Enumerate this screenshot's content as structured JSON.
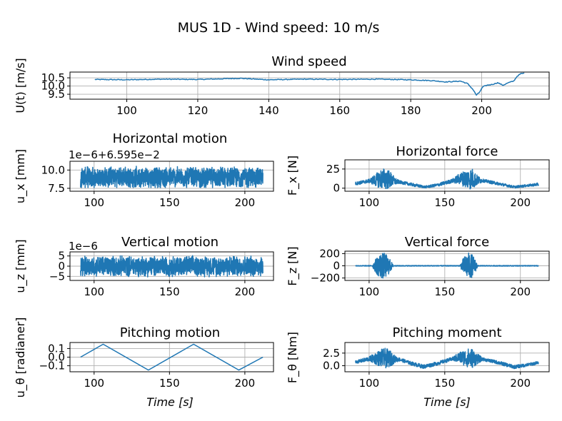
{
  "figure": {
    "suptitle": "MUS 1D - Wind speed: 10 m/s"
  },
  "colors": {
    "series": "#1f77b4",
    "grid": "#b0b0b0"
  },
  "chart_data": [
    {
      "id": "wind",
      "type": "line",
      "title": "Wind speed",
      "ylabel": "U(t) [m/s]",
      "xlabel": "",
      "xlim": [
        84,
        219
      ],
      "ylim": [
        9.2,
        10.85
      ],
      "xticks": [
        100,
        120,
        140,
        160,
        180,
        200
      ],
      "yticks": [
        9.5,
        10.0,
        10.5
      ],
      "ytick_labels": [
        "9.5",
        "10.0",
        "10.5"
      ],
      "grid": true,
      "pattern": "wind",
      "x": [
        91,
        100,
        110,
        120,
        132,
        140,
        150,
        160,
        170,
        180,
        186,
        190,
        194,
        196,
        197.5,
        198.5,
        199.3,
        200.3,
        201.5,
        203,
        204.5,
        206,
        207.5,
        209,
        210,
        211,
        212
      ],
      "y": [
        10.4,
        10.38,
        10.42,
        10.4,
        10.47,
        10.38,
        10.42,
        10.4,
        10.42,
        10.38,
        10.33,
        10.25,
        10.3,
        10.15,
        9.8,
        9.45,
        9.6,
        9.95,
        10.05,
        10.1,
        10.2,
        10.05,
        10.2,
        10.3,
        10.6,
        10.75,
        10.78
      ]
    },
    {
      "id": "hmotion",
      "type": "line",
      "title": "Horizontal motion",
      "ylabel": "u_x [mm]",
      "xlabel": "",
      "offset_text": "1e−6+6.595e−2",
      "xlim": [
        84,
        219
      ],
      "ylim": [
        7.1,
        11.2
      ],
      "xticks": [
        100,
        150,
        200
      ],
      "yticks": [
        7.5,
        10.0
      ],
      "ytick_labels": [
        "7.5",
        "10.0"
      ],
      "grid": true,
      "pattern": "noise",
      "x": [
        91,
        212
      ],
      "y_center": 9.0,
      "y_amplitude": [
        7.6,
        10.7
      ]
    },
    {
      "id": "hforce",
      "type": "line",
      "title": "Horizontal force",
      "ylabel": "F_x [N]",
      "xlabel": "",
      "xlim": [
        84,
        219
      ],
      "ylim": [
        -4,
        37
      ],
      "xticks": [
        100,
        150,
        200
      ],
      "yticks": [
        0,
        25
      ],
      "ytick_labels": [
        "0",
        "25"
      ],
      "grid": true,
      "pattern": "envelope",
      "x": [
        91,
        100,
        104,
        108,
        111,
        114,
        117,
        120,
        130,
        137,
        145,
        155,
        160,
        165,
        168,
        171,
        175,
        185,
        196,
        205,
        212
      ],
      "y": [
        8,
        12,
        18,
        25,
        27,
        22,
        14,
        10,
        6,
        3,
        6,
        12,
        20,
        25,
        27,
        18,
        12,
        8,
        3,
        5,
        7
      ],
      "y_min": [
        4,
        7,
        3,
        -1,
        -2,
        0,
        4,
        6,
        2,
        0,
        2,
        7,
        5,
        -1,
        -2,
        3,
        8,
        4,
        0,
        2,
        3
      ]
    },
    {
      "id": "vmotion",
      "type": "line",
      "title": "Vertical motion",
      "ylabel": "u_z [mm]",
      "xlabel": "",
      "offset_text": "1e−6",
      "xlim": [
        84,
        219
      ],
      "ylim": [
        -7,
        7
      ],
      "xticks": [
        100,
        150,
        200
      ],
      "yticks": [
        -5,
        0,
        5
      ],
      "ytick_labels": [
        "−5",
        "0",
        "5"
      ],
      "grid": true,
      "pattern": "noise",
      "x": [
        91,
        212
      ],
      "y_center": 0,
      "y_amplitude": [
        -5.5,
        5.5
      ]
    },
    {
      "id": "vforce",
      "type": "line",
      "title": "Vertical force",
      "ylabel": "F_z [N]",
      "xlabel": "",
      "xlim": [
        84,
        219
      ],
      "ylim": [
        -240,
        240
      ],
      "xticks": [
        100,
        150,
        200
      ],
      "yticks": [
        -200,
        0,
        200
      ],
      "ytick_labels": [
        "−200",
        "0",
        "200"
      ],
      "grid": true,
      "pattern": "bursts",
      "x": [
        91,
        212
      ],
      "baseline": 0,
      "bursts": [
        {
          "start": 102,
          "end": 116,
          "amplitude": 215
        },
        {
          "start": 160,
          "end": 172,
          "amplitude": 215
        }
      ]
    },
    {
      "id": "pmotion",
      "type": "line",
      "title": "Pitching motion",
      "ylabel": "u_θ [radianer]",
      "xlabel": "Time [s]",
      "xlim": [
        84,
        219
      ],
      "ylim": [
        -0.17,
        0.17
      ],
      "xticks": [
        100,
        150,
        200
      ],
      "yticks": [
        -0.1,
        0.0,
        0.1
      ],
      "ytick_labels": [
        "−0.1",
        "0.0",
        "0.1"
      ],
      "grid": true,
      "pattern": "line",
      "x": [
        91,
        106,
        136,
        166,
        196,
        212
      ],
      "y": [
        0.0,
        0.15,
        -0.15,
        0.15,
        -0.15,
        0.0
      ]
    },
    {
      "id": "pmoment",
      "type": "line",
      "title": "Pitching moment",
      "ylabel": "F_θ [Nm]",
      "xlabel": "Time [s]",
      "xlim": [
        84,
        219
      ],
      "ylim": [
        -1.2,
        4.6
      ],
      "xticks": [
        100,
        150,
        200
      ],
      "yticks": [
        0.0,
        2.5
      ],
      "ytick_labels": [
        "0.0",
        "2.5"
      ],
      "grid": true,
      "pattern": "envelope",
      "x": [
        91,
        100,
        104,
        108,
        111,
        114,
        117,
        120,
        128,
        136,
        145,
        155,
        160,
        165,
        168,
        171,
        175,
        185,
        196,
        205,
        212
      ],
      "y": [
        1.0,
        1.8,
        2.6,
        3.3,
        3.5,
        3.0,
        2.0,
        1.6,
        0.8,
        0.2,
        0.8,
        1.7,
        2.8,
        3.4,
        3.5,
        2.5,
        1.6,
        1.0,
        0.1,
        0.5,
        0.9
      ],
      "y_min": [
        0.4,
        0.9,
        0.3,
        -0.3,
        -0.5,
        -0.2,
        0.6,
        0.9,
        0.1,
        -0.6,
        0.1,
        1.0,
        0.5,
        -0.3,
        -0.5,
        0.2,
        1.0,
        0.3,
        -0.6,
        -0.1,
        0.3
      ]
    }
  ]
}
